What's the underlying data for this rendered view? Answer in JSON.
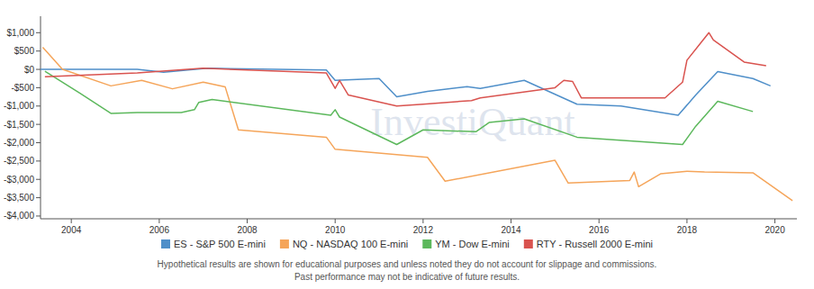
{
  "chart_data": {
    "type": "line",
    "watermark": "InvestiQuant",
    "footnotes": [
      "Hypothetical results are shown for educational purposes and unless noted they do not account for slippage and commissions.",
      "Past performance may not be indicative of future results."
    ],
    "xlim": [
      2003.3,
      2020.5
    ],
    "xticks": [
      2004,
      2006,
      2008,
      2010,
      2012,
      2014,
      2016,
      2018,
      2020
    ],
    "ylim": [
      -4075,
      1450
    ],
    "yticks": [
      {
        "value": 1000,
        "label": "$1,000"
      },
      {
        "value": 500,
        "label": "$500"
      },
      {
        "value": 0,
        "label": "$0"
      },
      {
        "value": -500,
        "label": "-$500"
      },
      {
        "value": -1000,
        "label": "-$1,000"
      },
      {
        "value": -1500,
        "label": "-$1,500"
      },
      {
        "value": -2000,
        "label": "-$2,000"
      },
      {
        "value": -2500,
        "label": "-$2,500"
      },
      {
        "value": -3000,
        "label": "-$3,000"
      },
      {
        "value": -3500,
        "label": "-$3,500"
      },
      {
        "value": -4000,
        "label": "-$4,000"
      }
    ],
    "grid": false,
    "legend": "bottom",
    "series": [
      {
        "name": "ES - S&P 500 E-mini",
        "color": "#4f8fc9",
        "x": [
          2003.3,
          2005.5,
          2006.1,
          2007.1,
          2009.8,
          2010.0,
          2011.0,
          2011.4,
          2012.1,
          2013.0,
          2013.3,
          2014.3,
          2015.5,
          2016.5,
          2017.8,
          2018.2,
          2018.7,
          2019.5,
          2019.9
        ],
        "values": [
          0,
          0,
          -80,
          30,
          -20,
          -300,
          -250,
          -750,
          -600,
          -470,
          -520,
          -300,
          -950,
          -1000,
          -1250,
          -700,
          -60,
          -250,
          -450
        ]
      },
      {
        "name": "NQ - NASDAQ 100 E-mini",
        "color": "#f5a55a",
        "x": [
          2003.35,
          2003.8,
          2004.9,
          2005.6,
          2006.3,
          2007.0,
          2007.5,
          2007.8,
          2009.8,
          2010.0,
          2012.1,
          2012.5,
          2015.0,
          2015.3,
          2016.7,
          2016.8,
          2016.9,
          2017.4,
          2018.0,
          2018.4,
          2019.5,
          2020.4
        ],
        "values": [
          600,
          0,
          -450,
          -300,
          -530,
          -350,
          -480,
          -1650,
          -1850,
          -2180,
          -2400,
          -3050,
          -2480,
          -3100,
          -3030,
          -2800,
          -3200,
          -2850,
          -2780,
          -2800,
          -2820,
          -3580
        ]
      },
      {
        "name": "YM - Dow E-mini",
        "color": "#5cb85c",
        "x": [
          2003.4,
          2004.2,
          2004.9,
          2005.5,
          2006.5,
          2006.8,
          2006.9,
          2007.2,
          2009.9,
          2010.0,
          2010.1,
          2011.4,
          2012.0,
          2013.2,
          2013.5,
          2014.3,
          2015.5,
          2017.9,
          2018.2,
          2018.7,
          2019.5
        ],
        "values": [
          -50,
          -650,
          -1200,
          -1180,
          -1180,
          -1100,
          -900,
          -820,
          -1250,
          -1100,
          -1300,
          -2050,
          -1650,
          -1700,
          -1450,
          -1350,
          -1850,
          -2050,
          -1550,
          -870,
          -1150
        ]
      },
      {
        "name": "RTY - Russell 2000 E-mini",
        "color": "#d9534f",
        "x": [
          2003.4,
          2005.5,
          2007.0,
          2009.8,
          2010.0,
          2010.1,
          2010.3,
          2011.4,
          2012.0,
          2013.1,
          2013.3,
          2015.0,
          2015.2,
          2015.4,
          2015.6,
          2017.5,
          2017.9,
          2018.0,
          2018.3,
          2018.5,
          2018.6,
          2019.3,
          2019.8
        ],
        "values": [
          -200,
          -100,
          30,
          -100,
          -520,
          -300,
          -700,
          -1000,
          -950,
          -850,
          -780,
          -500,
          -300,
          -330,
          -780,
          -780,
          -350,
          250,
          700,
          1000,
          800,
          200,
          100
        ]
      }
    ]
  }
}
